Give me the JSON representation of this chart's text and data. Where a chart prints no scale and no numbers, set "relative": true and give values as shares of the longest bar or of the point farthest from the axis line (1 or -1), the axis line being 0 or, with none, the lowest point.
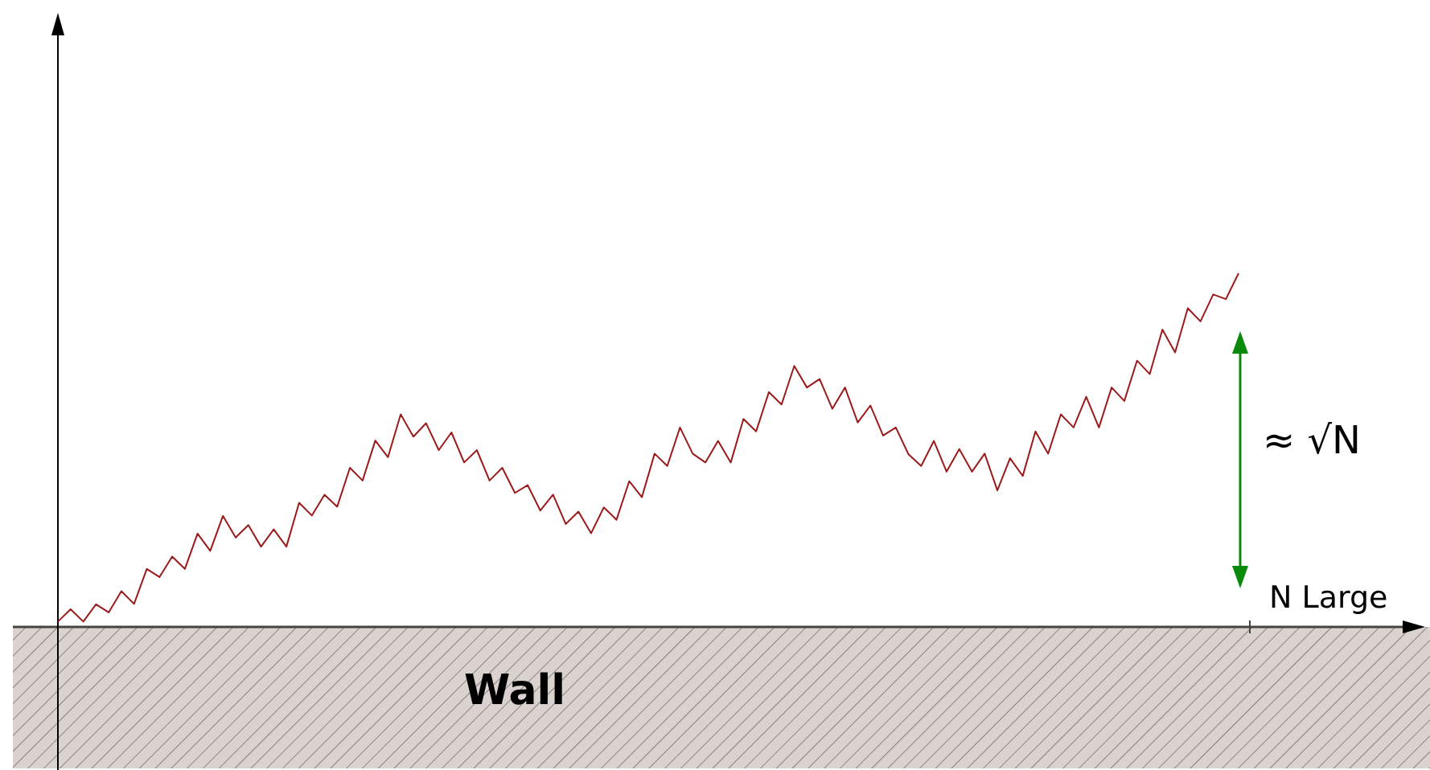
{
  "chart_data": {
    "type": "line",
    "relative": true,
    "categories": [
      null,
      null,
      null,
      null,
      null,
      null,
      null,
      null,
      null,
      null,
      null,
      null,
      null,
      null,
      null,
      null,
      null,
      null,
      null,
      null,
      null,
      null,
      null,
      null,
      null,
      null,
      null,
      null,
      null,
      null,
      null,
      null,
      null,
      null,
      null,
      null,
      null,
      null,
      null,
      null,
      null,
      null,
      null,
      null,
      null,
      null,
      null,
      null,
      null,
      null,
      null,
      null,
      null,
      null,
      null,
      null,
      null,
      null,
      null,
      null,
      null,
      null,
      null,
      null,
      null,
      null,
      null,
      null,
      null,
      null,
      null,
      null,
      null,
      null,
      null,
      null,
      null,
      null,
      null,
      null,
      null,
      null,
      null,
      null,
      null,
      null,
      null,
      null,
      null,
      null,
      null,
      null,
      null,
      null
    ],
    "series": [
      {
        "color": "#9b1b1b",
        "values": [
          0.015,
          0.05,
          0.015,
          0.064,
          0.041,
          0.101,
          0.065,
          0.164,
          0.141,
          0.199,
          0.164,
          0.264,
          0.215,
          0.314,
          0.253,
          0.288,
          0.227,
          0.276,
          0.227,
          0.351,
          0.315,
          0.374,
          0.34,
          0.45,
          0.414,
          0.527,
          0.48,
          0.601,
          0.538,
          0.576,
          0.5,
          0.55,
          0.465,
          0.5,
          0.414,
          0.45,
          0.379,
          0.401,
          0.329,
          0.374,
          0.291,
          0.326,
          0.265,
          0.338,
          0.303,
          0.412,
          0.367,
          0.49,
          0.455,
          0.564,
          0.49,
          0.465,
          0.526,
          0.465,
          0.588,
          0.553,
          0.664,
          0.629,
          0.738,
          0.677,
          0.701,
          0.617,
          0.677,
          0.578,
          0.626,
          0.541,
          0.564,
          0.488,
          0.455,
          0.526,
          0.439,
          0.503,
          0.439,
          0.49,
          0.386,
          0.477,
          0.427,
          0.553,
          0.49,
          0.601,
          0.564,
          0.651,
          0.564,
          0.677,
          0.639,
          0.753,
          0.715,
          0.841,
          0.776,
          0.901,
          0.864,
          0.94,
          0.927,
          1
        ]
      }
    ],
    "bands": [
      {
        "axis": "y",
        "from": -0.4,
        "to": 0,
        "label": "Wall",
        "color": "#d9d2ce"
      }
    ],
    "annotations": [
      "≈ √N",
      "N Large"
    ]
  }
}
